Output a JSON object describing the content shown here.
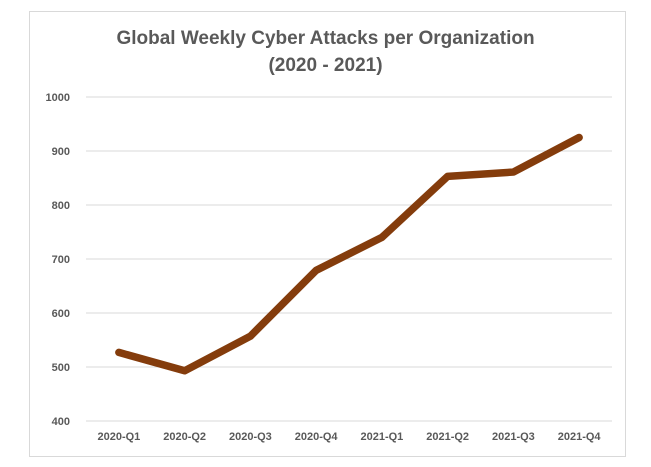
{
  "chart_data": {
    "type": "line",
    "title": "Global Weekly Cyber Attacks per Organization",
    "subtitle": "(2020 - 2021)",
    "xlabel": "",
    "ylabel": "",
    "categories": [
      "2020-Q1",
      "2020-Q2",
      "2020-Q3",
      "2020-Q4",
      "2021-Q1",
      "2021-Q2",
      "2021-Q3",
      "2021-Q4"
    ],
    "series": [
      {
        "values": [
          527,
          493,
          557,
          679,
          740,
          853,
          861,
          925
        ]
      }
    ],
    "ylim": [
      400,
      1000
    ],
    "yticks": [
      "400",
      "500",
      "600",
      "700",
      "800",
      "900",
      "1000"
    ],
    "grid": true,
    "legend": "none",
    "colors": {
      "line": "#843c0c",
      "grid": "#d9d9d9",
      "text": "#595959"
    }
  }
}
